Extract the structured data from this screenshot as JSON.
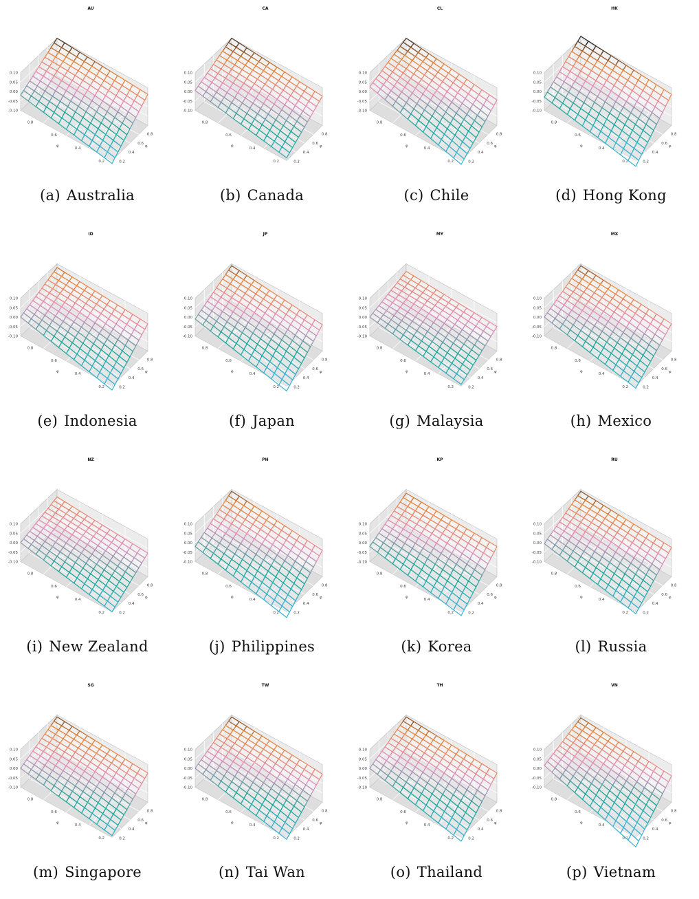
{
  "figure": {
    "panels": [
      {
        "id": "(a)",
        "caption": "Australia",
        "title": "AU"
      },
      {
        "id": "(b)",
        "caption": "Canada",
        "title": "CA"
      },
      {
        "id": "(c)",
        "caption": "Chile",
        "title": "CL"
      },
      {
        "id": "(d)",
        "caption": "Hong Kong",
        "title": "HK"
      },
      {
        "id": "(e)",
        "caption": "Indonesia",
        "title": "ID"
      },
      {
        "id": "(f)",
        "caption": "Japan",
        "title": "JP"
      },
      {
        "id": "(g)",
        "caption": "Malaysia",
        "title": "MY"
      },
      {
        "id": "(h)",
        "caption": "Mexico",
        "title": "MX"
      },
      {
        "id": "(i)",
        "caption": "New Zealand",
        "title": "NZ"
      },
      {
        "id": "(j)",
        "caption": "Philippines",
        "title": "PH"
      },
      {
        "id": "(k)",
        "caption": "Korea",
        "title": "KP"
      },
      {
        "id": "(l)",
        "caption": "Russia",
        "title": "RU"
      },
      {
        "id": "(m)",
        "caption": "Singapore",
        "title": "SG"
      },
      {
        "id": "(n)",
        "caption": "Tai Wan",
        "title": "TW"
      },
      {
        "id": "(o)",
        "caption": "Thailand",
        "title": "TH"
      },
      {
        "id": "(p)",
        "caption": "Vietnam",
        "title": "VN"
      }
    ]
  },
  "chart_data": {
    "type": "surface",
    "z_ticks": [
      "0.10",
      "0.05",
      "0.00",
      "-0.05",
      "-0.10"
    ],
    "zlim": [
      -0.1,
      0.1
    ],
    "x_label": "φ",
    "x_ticks": [
      "0.8",
      "0.6",
      "0.4",
      "0.2"
    ],
    "y_label": "φ",
    "y_ticks": [
      "0.8",
      "0.6",
      "0.4",
      "0.2"
    ],
    "grid": "13x13",
    "colors": {
      "high": "#222222",
      "upper": "#e8883a",
      "middle": "#e58fbf",
      "lower": "#19a898",
      "low": "#3fb4d2"
    },
    "surfaces": [
      {
        "title": "AU",
        "corner_values": [
          0.1,
          0.065,
          -0.02,
          -0.115
        ]
      },
      {
        "title": "CA",
        "corner_values": [
          0.1,
          0.055,
          0.005,
          -0.085
        ]
      },
      {
        "title": "CL",
        "corner_values": [
          0.1,
          0.035,
          0.025,
          -0.12
        ]
      },
      {
        "title": "HK",
        "corner_values": [
          0.11,
          0.065,
          -0.03,
          -0.13
        ]
      },
      {
        "title": "ID",
        "corner_values": [
          0.08,
          0.045,
          0.0,
          -0.12
        ]
      },
      {
        "title": "JP",
        "corner_values": [
          0.09,
          0.04,
          -0.01,
          -0.125
        ]
      },
      {
        "title": "MY",
        "corner_values": [
          0.06,
          0.03,
          0.0,
          -0.09
        ]
      },
      {
        "title": "MX",
        "corner_values": [
          0.09,
          0.045,
          0.0,
          -0.11
        ]
      },
      {
        "title": "NZ",
        "corner_values": [
          0.06,
          0.025,
          0.0,
          -0.1
        ]
      },
      {
        "title": "PH",
        "corner_values": [
          0.09,
          0.04,
          -0.02,
          -0.13
        ]
      },
      {
        "title": "KP",
        "corner_values": [
          0.08,
          0.06,
          -0.02,
          -0.12
        ]
      },
      {
        "title": "RU",
        "corner_values": [
          0.09,
          0.055,
          -0.005,
          -0.11
        ]
      },
      {
        "title": "SG",
        "corner_values": [
          0.09,
          0.055,
          0.0,
          -0.09
        ]
      },
      {
        "title": "TW",
        "corner_values": [
          0.09,
          0.05,
          0.0,
          -0.11
        ]
      },
      {
        "title": "TH",
        "corner_values": [
          0.09,
          0.055,
          0.0,
          -0.12
        ]
      },
      {
        "title": "VN",
        "corner_values": [
          0.085,
          0.04,
          0.015,
          -0.15
        ]
      }
    ]
  }
}
